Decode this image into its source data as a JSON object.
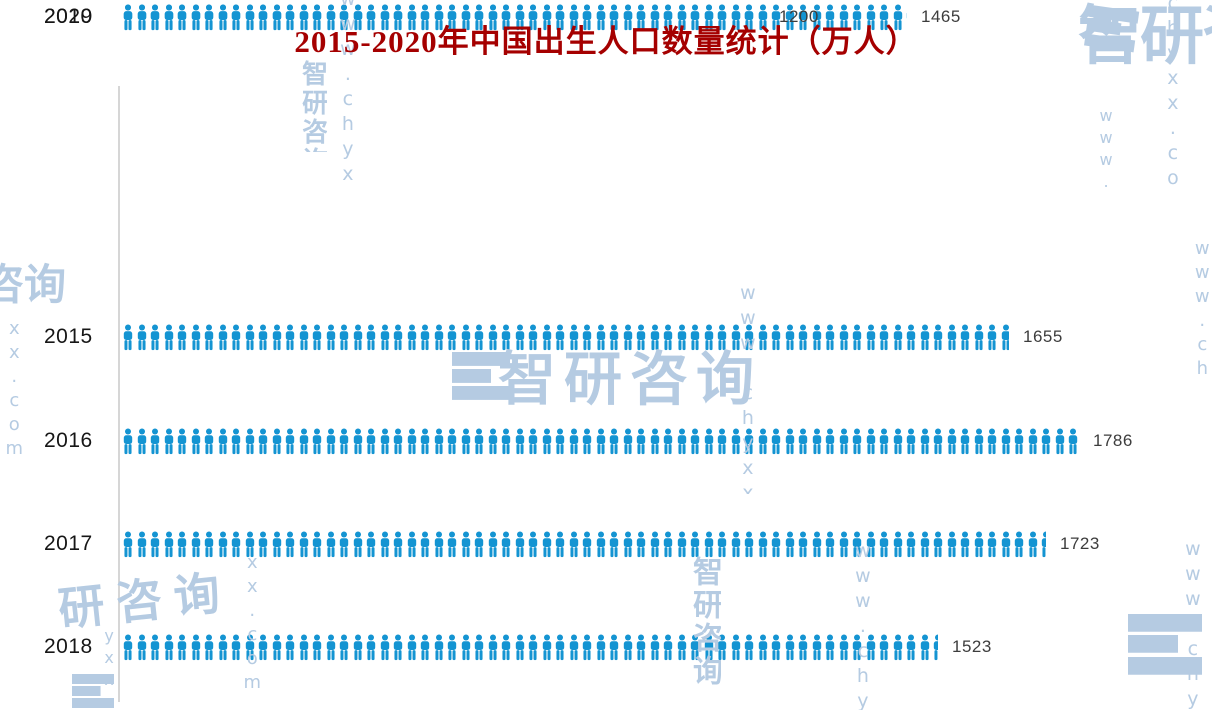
{
  "chart_data": {
    "type": "bar",
    "subtype": "pictogram",
    "orientation": "horizontal",
    "title": "2015-2020年中国出生人口数量统计（万人）",
    "unit_label": "万人",
    "categories": [
      "2015",
      "2016",
      "2017",
      "2018",
      "2019",
      "2020"
    ],
    "values": [
      1655,
      1786,
      1723,
      1523,
      1465,
      1200
    ],
    "rows": [
      {
        "year": "2015",
        "value": "1655"
      },
      {
        "year": "2016",
        "value": "1786"
      },
      {
        "year": "2017",
        "value": "1723"
      },
      {
        "year": "2018",
        "value": "1523"
      },
      {
        "year": "2019",
        "value": "1465"
      },
      {
        "year": "2020",
        "value": "1200"
      }
    ],
    "xlim": [
      0,
      1800
    ],
    "grid": false,
    "legend": "none",
    "bar_color": "#1494d2",
    "title_color": "#a50000",
    "axis_line_color": "#d6d6d6"
  },
  "watermark": {
    "brand": "智研咨询",
    "brand_partial_1": "研咨询",
    "brand_partial_2": "咨询",
    "url": "www.chyxx.com",
    "url_partial": "chyxx.com",
    "url_partial_2": "xx.com",
    "url_partial_3": "yxx",
    "url_partial_4": "www.",
    "color": "#b5cbe2"
  }
}
